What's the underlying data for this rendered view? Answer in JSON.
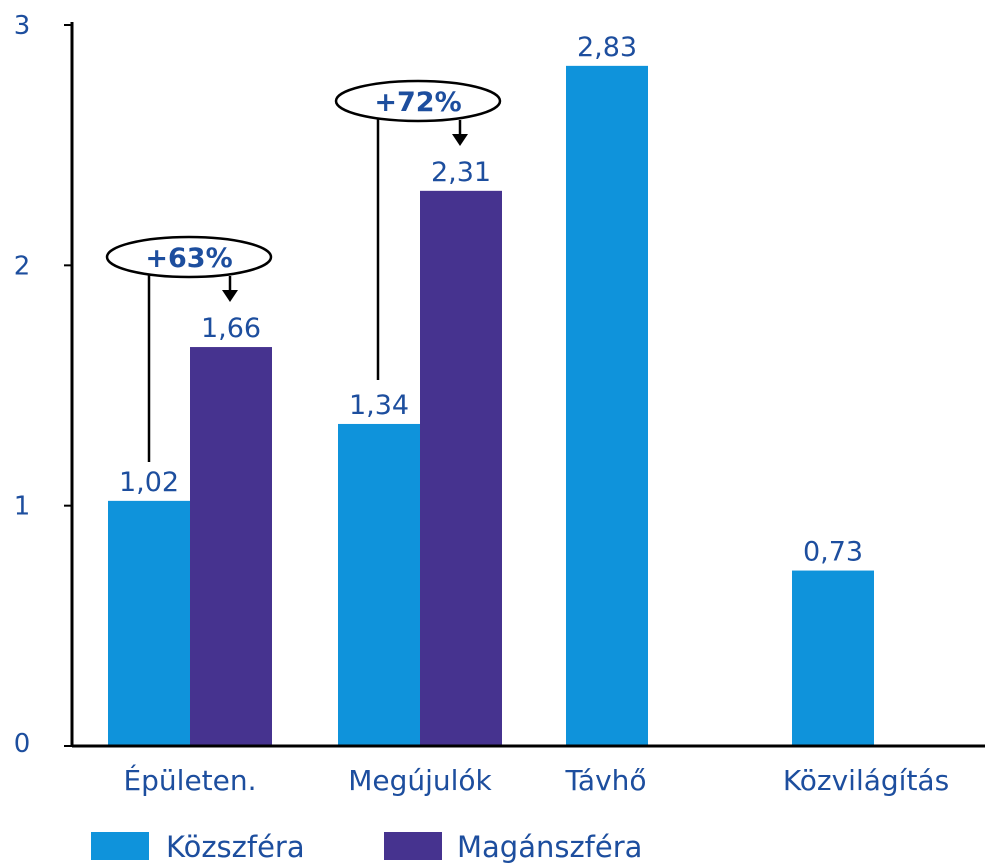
{
  "chart_data": {
    "type": "bar",
    "categories": [
      "Épületen.",
      "Megújulók",
      "Távhő",
      "Közvilágítás"
    ],
    "series": [
      {
        "name": "Közszféra",
        "color": "#0f93db",
        "values": [
          1.02,
          1.34,
          2.83,
          0.73
        ],
        "labels": [
          "1,02",
          "1,34",
          "2,83",
          "0,73"
        ]
      },
      {
        "name": "Magánszféra",
        "color": "#46338f",
        "values": [
          1.66,
          2.31,
          null,
          null
        ],
        "labels": [
          "1,66",
          "2,31",
          "",
          ""
        ]
      }
    ],
    "ylim": [
      0,
      3
    ],
    "yticks": [
      0,
      1,
      2,
      3
    ],
    "ytick_labels": [
      "0",
      "1",
      "2",
      "3"
    ],
    "title": "",
    "xlabel": "",
    "ylabel": "",
    "legend_position": "bottom-left",
    "annotations": [
      {
        "category": "Épületen.",
        "text": "+63%"
      },
      {
        "category": "Megújulók",
        "text": "+72%"
      }
    ]
  }
}
